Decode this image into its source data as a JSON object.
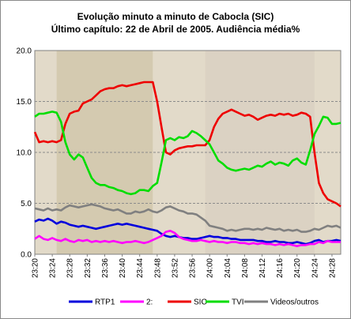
{
  "chart_data": {
    "type": "line",
    "title": "Evolução minuto a minuto de Cabocla (SIC)",
    "subtitle": "Último capítulo: 22 de Abril de 2005. Audiência média%",
    "xlabel": "",
    "ylabel": "",
    "ylim": [
      0,
      20
    ],
    "yticks": [
      "0.0",
      "5.0",
      "10.0",
      "15.0",
      "20.0"
    ],
    "grid": true,
    "legend": "bottom",
    "categories": [
      "23:20",
      "23:21",
      "23:22",
      "23:23",
      "23:24",
      "23:25",
      "23:26",
      "23:27",
      "23:28",
      "23:29",
      "23:30",
      "23:31",
      "23:32",
      "23:33",
      "23:34",
      "23:35",
      "23:36",
      "23:37",
      "23:38",
      "23:39",
      "23:40",
      "23:41",
      "23:42",
      "23:43",
      "23:44",
      "23:45",
      "23:46",
      "23:47",
      "23:48",
      "23:49",
      "23:50",
      "23:51",
      "23:52",
      "23:53",
      "23:54",
      "23:55",
      "23:56",
      "23:57",
      "23:58",
      "23:59",
      "24:00",
      "24:01",
      "24:02",
      "24:03",
      "24:04",
      "24:05",
      "24:06",
      "24:07",
      "24:08",
      "24:09",
      "24:10",
      "24:11",
      "24:12",
      "24:13",
      "24:14",
      "24:15",
      "24:16",
      "24:17",
      "24:18",
      "24:19",
      "24:20",
      "24:21",
      "24:22",
      "24:23",
      "24:24",
      "24:25",
      "24:26",
      "24:27",
      "24:28",
      "24:29",
      "24:30"
    ],
    "xticks": [
      "23:20",
      "23:24",
      "23:28",
      "23:32",
      "23:36",
      "23:40",
      "23:44",
      "23:48",
      "23:52",
      "23:56",
      "24:00",
      "24:04",
      "24:08",
      "24:12",
      "24:16",
      "24:20",
      "24:24",
      "24:28"
    ],
    "series": [
      {
        "name": "RTP1",
        "color": "#0000dd",
        "values": [
          3.2,
          3.4,
          3.3,
          3.5,
          3.3,
          3.0,
          3.2,
          3.1,
          2.9,
          2.8,
          2.7,
          2.8,
          2.7,
          2.6,
          2.5,
          2.6,
          2.7,
          2.8,
          2.9,
          3.0,
          2.9,
          3.0,
          2.9,
          2.8,
          2.7,
          2.6,
          2.5,
          2.4,
          2.3,
          2.0,
          1.8,
          1.7,
          1.8,
          1.7,
          1.6,
          1.6,
          1.5,
          1.5,
          1.6,
          1.7,
          1.8,
          1.7,
          1.7,
          1.6,
          1.6,
          1.5,
          1.5,
          1.4,
          1.4,
          1.4,
          1.4,
          1.3,
          1.3,
          1.2,
          1.2,
          1.3,
          1.2,
          1.2,
          1.1,
          1.1,
          1.2,
          1.1,
          1.0,
          1.1,
          1.3,
          1.4,
          1.2,
          1.3,
          1.3,
          1.4,
          1.3
        ]
      },
      {
        "name": "2:",
        "color": "#ff00ff",
        "values": [
          1.5,
          1.8,
          1.5,
          1.4,
          1.6,
          1.4,
          1.3,
          1.5,
          1.3,
          1.2,
          1.4,
          1.3,
          1.4,
          1.2,
          1.3,
          1.2,
          1.3,
          1.2,
          1.3,
          1.2,
          1.1,
          1.2,
          1.2,
          1.3,
          1.2,
          1.1,
          1.2,
          1.4,
          1.6,
          1.8,
          2.2,
          2.3,
          2.1,
          1.7,
          1.5,
          1.4,
          1.3,
          1.3,
          1.4,
          1.3,
          1.2,
          1.3,
          1.2,
          1.2,
          1.1,
          1.2,
          1.2,
          1.1,
          1.1,
          1.0,
          1.1,
          1.0,
          1.1,
          1.0,
          1.0,
          0.9,
          1.0,
          0.9,
          1.0,
          0.9,
          0.8,
          0.9,
          0.9,
          1.0,
          1.0,
          1.2,
          1.1,
          1.3,
          1.2,
          1.2,
          1.2
        ]
      },
      {
        "name": "SIC",
        "color": "#ee0000",
        "values": [
          12.0,
          11.0,
          11.1,
          11.0,
          11.1,
          11.0,
          11.2,
          12.8,
          13.8,
          14.0,
          14.1,
          14.8,
          15.0,
          15.2,
          15.6,
          16.0,
          16.2,
          16.3,
          16.3,
          16.5,
          16.6,
          16.5,
          16.6,
          16.7,
          16.8,
          16.9,
          16.9,
          16.9,
          15.0,
          12.5,
          10.0,
          9.8,
          10.2,
          10.4,
          10.5,
          10.6,
          10.6,
          10.7,
          10.7,
          10.7,
          11.2,
          12.5,
          13.3,
          13.8,
          14.0,
          14.2,
          14.0,
          13.8,
          13.6,
          13.7,
          13.5,
          13.2,
          13.4,
          13.6,
          13.7,
          13.6,
          13.8,
          13.7,
          13.8,
          13.6,
          13.7,
          13.9,
          13.8,
          13.5,
          10.0,
          7.0,
          6.0,
          5.4,
          5.2,
          5.0,
          4.7
        ]
      },
      {
        "name": "TVI",
        "color": "#00dd00",
        "values": [
          13.5,
          13.8,
          13.8,
          13.9,
          14.0,
          13.9,
          13.0,
          11.0,
          9.8,
          9.3,
          9.8,
          9.5,
          8.5,
          7.5,
          7.0,
          6.8,
          6.8,
          6.6,
          6.5,
          6.3,
          6.2,
          6.0,
          5.9,
          6.0,
          6.3,
          6.3,
          6.2,
          6.7,
          7.0,
          9.0,
          11.2,
          11.4,
          11.2,
          11.5,
          11.4,
          11.6,
          12.1,
          11.9,
          11.6,
          11.2,
          10.8,
          10.0,
          9.2,
          8.9,
          8.5,
          8.3,
          8.2,
          8.3,
          8.4,
          8.3,
          8.5,
          8.7,
          8.6,
          8.9,
          9.1,
          8.8,
          9.0,
          8.9,
          8.7,
          9.2,
          9.4,
          9.0,
          8.8,
          10.2,
          11.8,
          12.6,
          13.5,
          13.4,
          12.8,
          12.8,
          12.9
        ]
      },
      {
        "name": "Videos/outros",
        "color": "#808080",
        "values": [
          4.5,
          4.4,
          4.3,
          4.5,
          4.3,
          4.4,
          4.3,
          4.6,
          4.8,
          4.7,
          4.6,
          4.7,
          4.8,
          4.9,
          4.8,
          4.7,
          4.5,
          4.4,
          4.3,
          4.4,
          4.2,
          4.0,
          4.0,
          4.2,
          4.1,
          4.2,
          4.4,
          4.2,
          4.1,
          4.3,
          4.6,
          4.7,
          4.5,
          4.3,
          4.2,
          4.0,
          4.0,
          3.9,
          3.6,
          3.3,
          2.8,
          2.7,
          2.6,
          2.5,
          2.3,
          2.4,
          2.3,
          2.4,
          2.5,
          2.5,
          2.4,
          2.5,
          2.4,
          2.6,
          2.5,
          2.4,
          2.5,
          2.3,
          2.4,
          2.3,
          2.4,
          2.2,
          2.2,
          2.3,
          2.5,
          2.4,
          2.6,
          2.8,
          2.7,
          2.8,
          2.6
        ]
      }
    ]
  }
}
